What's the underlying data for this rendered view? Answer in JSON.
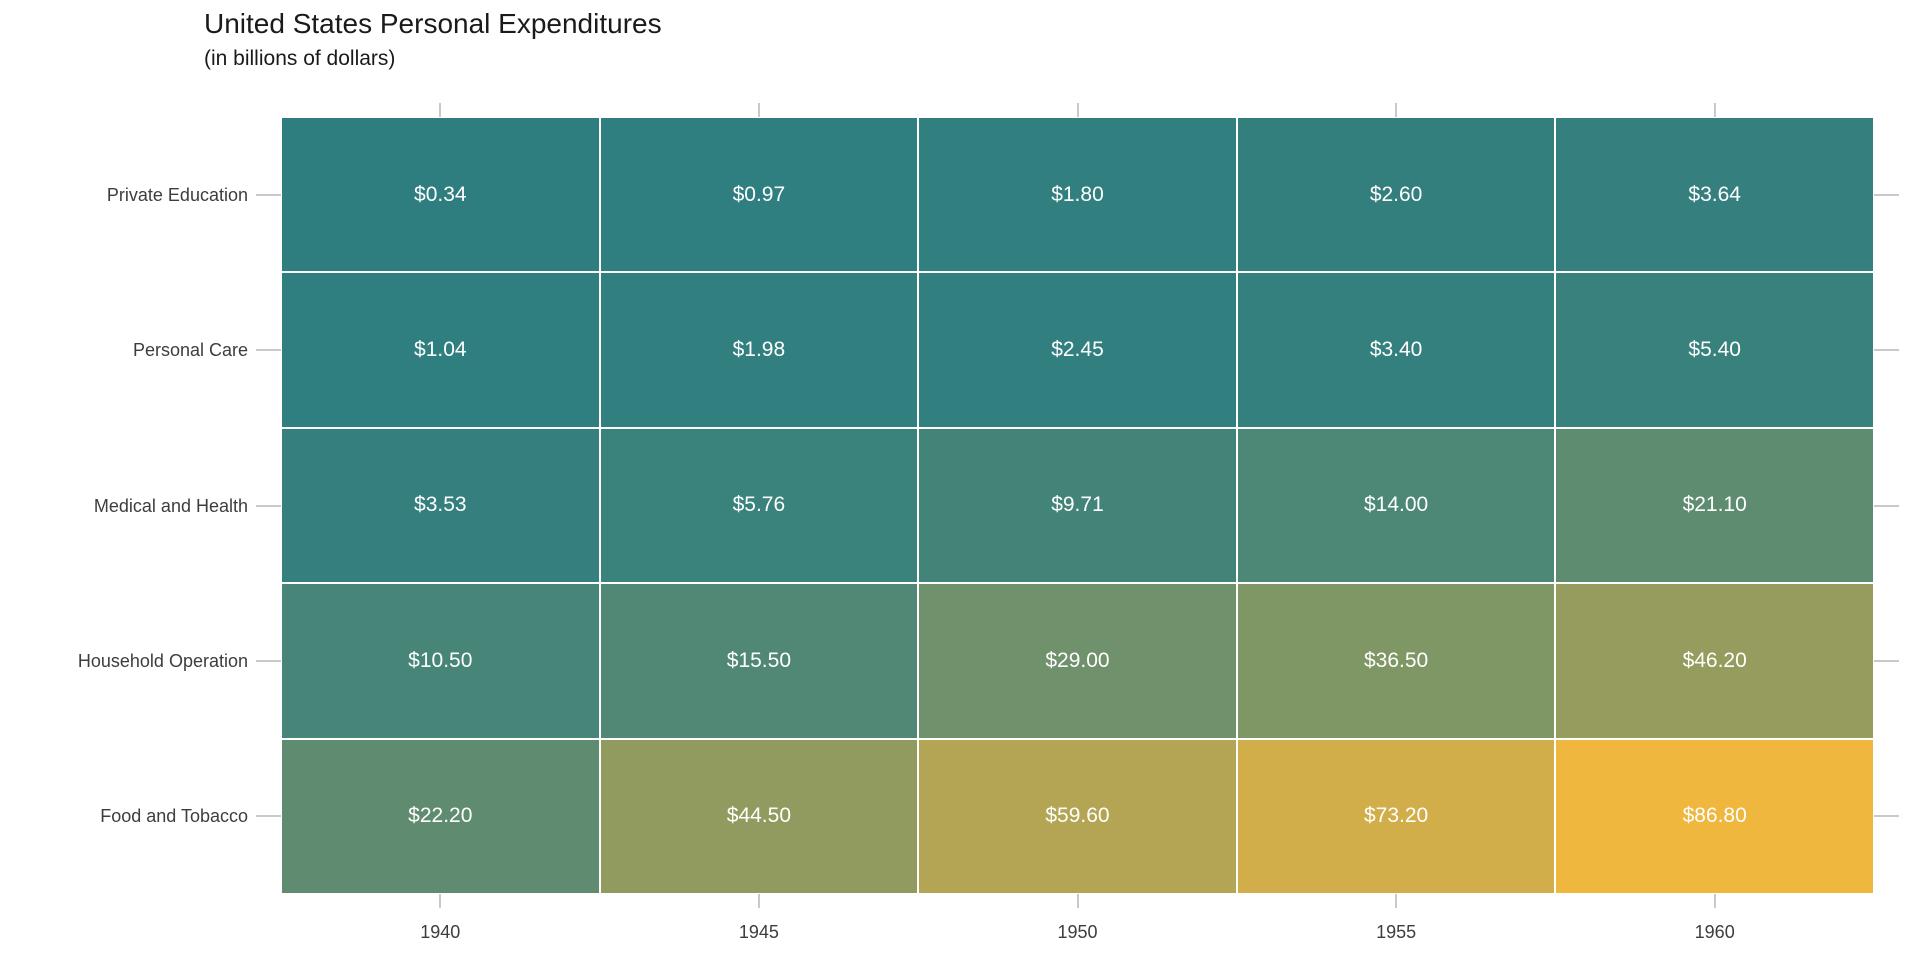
{
  "title": "United States Personal Expenditures",
  "subtitle": "(in billions of dollars)",
  "colors": {
    "background": "#FFFFFF",
    "title_text": "#1A1A1A",
    "axis_text": "#3D3D3D",
    "tick_mark": "#C9C9C9",
    "cell_border": "#FFFFFF",
    "cell_text": "#FFFFFF",
    "scale_low": "#2E7E80",
    "scale_high": "#F0B73F"
  },
  "chart_data": {
    "type": "heatmap",
    "title": "United States Personal Expenditures",
    "subtitle": "(in billions of dollars)",
    "value_unit": "billions of dollars",
    "value_range": [
      0.34,
      86.8
    ],
    "legend": "none",
    "grid": "off",
    "x_categories": [
      "1940",
      "1945",
      "1950",
      "1955",
      "1960"
    ],
    "y_categories_top_to_bottom": [
      "Private Education",
      "Personal Care",
      "Medical and Health",
      "Household Operation",
      "Food and Tobacco"
    ],
    "rows": [
      {
        "name": "Private Education",
        "values": [
          0.34,
          0.97,
          1.8,
          2.6,
          3.64
        ],
        "labels": [
          "$0.34",
          "$0.97",
          "$1.80",
          "$2.60",
          "$3.64"
        ],
        "cell_colors": [
          "#2E7E80",
          "#2F7E80",
          "#317F7F",
          "#337F7E",
          "#35807E"
        ]
      },
      {
        "name": "Personal Care",
        "values": [
          1.04,
          1.98,
          2.45,
          3.4,
          5.4
        ],
        "labels": [
          "$1.04",
          "$1.98",
          "$2.45",
          "$3.40",
          "$5.40"
        ],
        "cell_colors": [
          "#2F7E80",
          "#317F7F",
          "#327F7F",
          "#34807E",
          "#39817C"
        ]
      },
      {
        "name": "Medical and Health",
        "values": [
          3.53,
          5.76,
          9.71,
          14.0,
          21.1
        ],
        "labels": [
          "$3.53",
          "$5.76",
          "$9.71",
          "$14.00",
          "$21.10"
        ],
        "cell_colors": [
          "#35807E",
          "#3A827C",
          "#438479",
          "#4D8776",
          "#5D8C70"
        ]
      },
      {
        "name": "Household Operation",
        "values": [
          10.5,
          15.5,
          29.0,
          36.5,
          46.2
        ],
        "labels": [
          "$10.50",
          "$15.50",
          "$29.00",
          "$36.50",
          "$46.20"
        ],
        "cell_colors": [
          "#468578",
          "#518875",
          "#6F916B",
          "#7F9665",
          "#959C5E"
        ]
      },
      {
        "name": "Food and Tobacco",
        "values": [
          22.2,
          44.5,
          59.6,
          73.2,
          86.8
        ],
        "labels": [
          "$22.20",
          "$44.50",
          "$59.60",
          "$73.20",
          "$86.80"
        ],
        "cell_colors": [
          "#5F8C70",
          "#929B5F",
          "#B3A553",
          "#D1AE49",
          "#F0B73F"
        ]
      }
    ]
  }
}
